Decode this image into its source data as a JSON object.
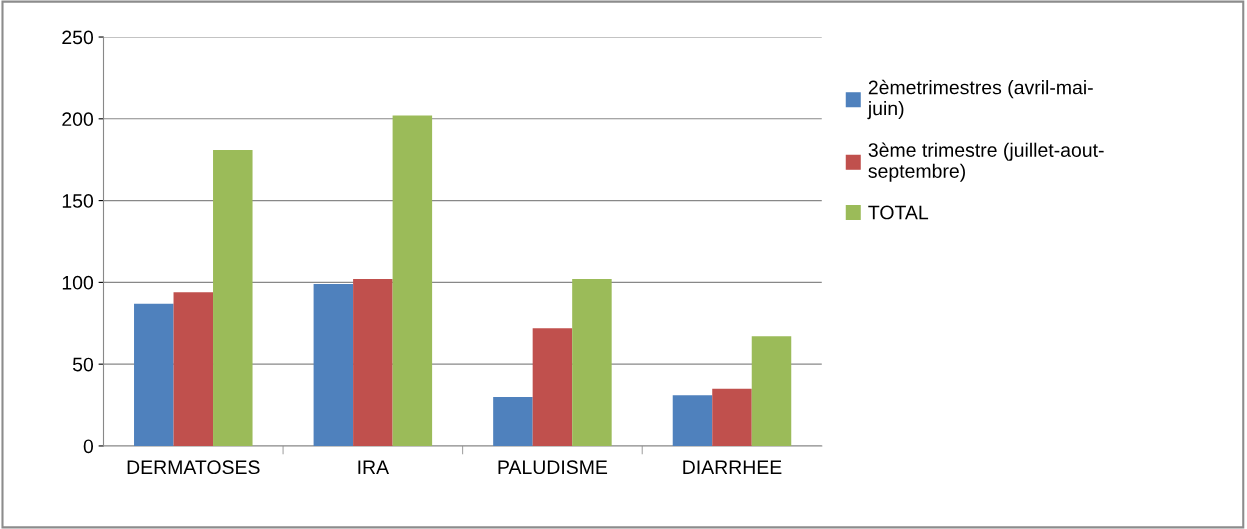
{
  "chart_data": {
    "type": "bar",
    "categories": [
      "DERMATOSES",
      "IRA",
      "PALUDISME",
      "DIARRHEE"
    ],
    "series": [
      {
        "name": "2èmetrimestres (avril-mai-\njuin)",
        "color": "#4f81bd",
        "values": [
          87,
          99,
          30,
          31
        ]
      },
      {
        "name": "3ème trimestre (juillet-aout-\nseptembre)",
        "color": "#c0504d",
        "values": [
          94,
          102,
          72,
          35
        ]
      },
      {
        "name": "TOTAL",
        "color": "#9bbb59",
        "values": [
          181,
          202,
          102,
          67
        ]
      }
    ],
    "ylim": [
      0,
      250
    ],
    "yticks": [
      0,
      50,
      100,
      150,
      200,
      250
    ],
    "grid": "y",
    "legend": "right"
  }
}
